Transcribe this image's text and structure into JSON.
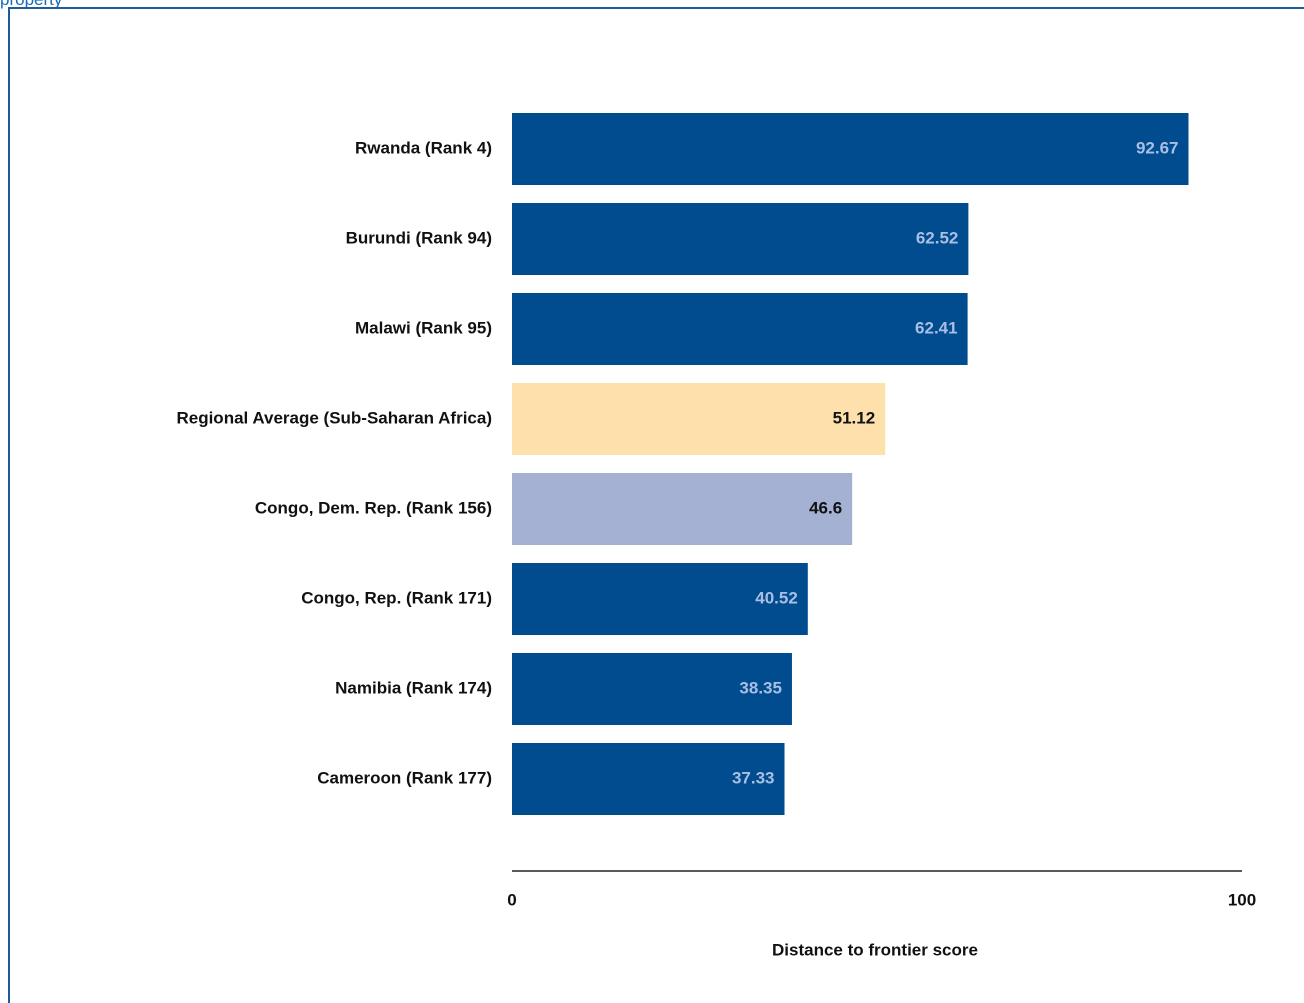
{
  "header_fragment": "property",
  "chart_data": {
    "type": "barh",
    "categories": [
      "Rwanda (Rank 4)",
      "Burundi (Rank 94)",
      "Malawi (Rank 95)",
      "Regional Average (Sub-Saharan Africa)",
      "Congo, Dem. Rep. (Rank 156)",
      "Congo, Rep. (Rank 171)",
      "Namibia (Rank 174)",
      "Cameroon (Rank 177)"
    ],
    "values": [
      92.67,
      62.52,
      62.41,
      51.12,
      46.6,
      40.52,
      38.35,
      37.33
    ],
    "colors": [
      "#004c8f",
      "#004c8f",
      "#004c8f",
      "#fde0ab",
      "#a4b1d3",
      "#004c8f",
      "#004c8f",
      "#004c8f"
    ],
    "label_colors": [
      "#a9bfe3",
      "#a9bfe3",
      "#a9bfe3",
      "#111111",
      "#111111",
      "#a9bfe3",
      "#a9bfe3",
      "#a9bfe3"
    ],
    "xlim": [
      0,
      100
    ],
    "xticks": [
      0,
      100
    ],
    "xlabel": "Distance to frontier score"
  }
}
